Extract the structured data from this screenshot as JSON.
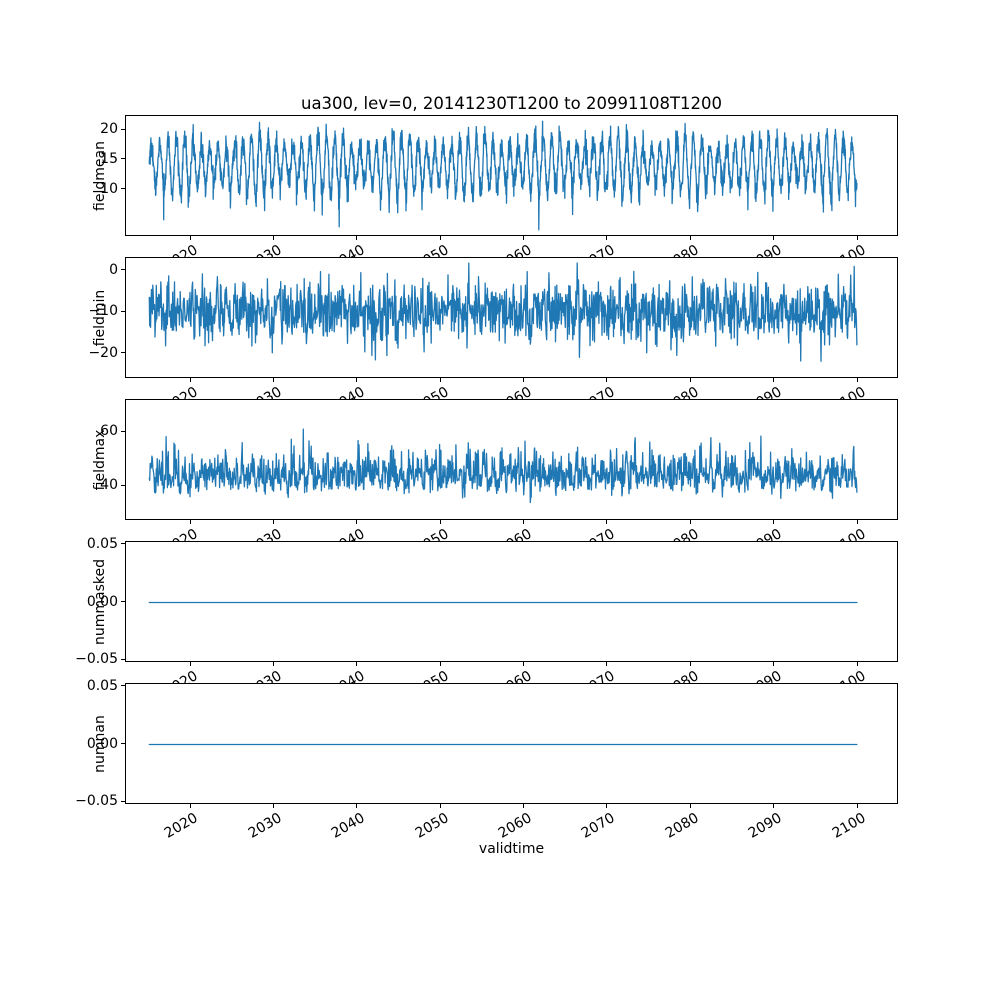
{
  "figure": {
    "title": "ua300, lev=0, 20141230T1200 to 20991108T1200",
    "xlabel": "validtime",
    "background": "#ffffff",
    "line_color": "#1f77b4",
    "xlim": [
      2012.2,
      2104.9
    ],
    "xticks": [
      2020,
      2030,
      2040,
      2050,
      2060,
      2070,
      2080,
      2090,
      2100
    ],
    "xtick_labels": [
      "2020",
      "2030",
      "2040",
      "2050",
      "2060",
      "2070",
      "2080",
      "2090",
      "2100"
    ]
  },
  "chart_data": [
    {
      "type": "line",
      "name": "fieldmean",
      "ylabel": "fieldmean",
      "ylim": [
        2,
        22.4
      ],
      "yticks": [
        {
          "value": 20,
          "label": "20"
        },
        {
          "value": 15,
          "label": "15"
        },
        {
          "value": 10,
          "label": "10"
        }
      ],
      "x_start": 2014.99,
      "x_end": 2099.85,
      "n_points": 3000,
      "signal": {
        "kind": "seasonal_noise",
        "mean": 14.2,
        "seasonal_amplitude": 4.0,
        "amplitude_mod": 1.1,
        "noise_std": 1.0,
        "range": [
          2.5,
          21.5
        ]
      }
    },
    {
      "type": "line",
      "name": "fieldmin",
      "ylabel": "fieldmin",
      "ylim": [
        -26,
        3
      ],
      "yticks": [
        {
          "value": 0,
          "label": "0"
        },
        {
          "value": -10,
          "label": "−10"
        },
        {
          "value": -20,
          "label": "−20"
        }
      ],
      "x_start": 2014.99,
      "x_end": 2099.85,
      "n_points": 1600,
      "signal": {
        "kind": "noise",
        "mean": -10,
        "seasonal_amplitude": 1.3,
        "noise_std": 3.7,
        "range": [
          -22,
          1.8
        ]
      }
    },
    {
      "type": "line",
      "name": "fieldmax",
      "ylabel": "fieldmax",
      "ylim": [
        27,
        72
      ],
      "yticks": [
        {
          "value": 60,
          "label": "60"
        },
        {
          "value": 40,
          "label": "40"
        }
      ],
      "x_start": 2014.99,
      "x_end": 2099.85,
      "n_points": 1600,
      "signal": {
        "kind": "skew_noise",
        "mean": 40.5,
        "seasonal_amplitude": 2.2,
        "noise_std": 2.0,
        "skew_std": 5.0,
        "range": [
          33,
          68
        ]
      }
    },
    {
      "type": "line",
      "name": "nummasked",
      "ylabel": "nummasked",
      "ylim": [
        -0.0526,
        0.0526
      ],
      "yticks": [
        {
          "value": 0.05,
          "label": "0.05"
        },
        {
          "value": 0.0,
          "label": "0.00"
        },
        {
          "value": -0.05,
          "label": "−0.05"
        }
      ],
      "x_start": 2014.99,
      "x_end": 2099.85,
      "n_points": 2,
      "signal": {
        "kind": "constant",
        "value": 0
      }
    },
    {
      "type": "line",
      "name": "numnan",
      "ylabel": "numnan",
      "ylim": [
        -0.0526,
        0.0526
      ],
      "yticks": [
        {
          "value": 0.05,
          "label": "0.05"
        },
        {
          "value": 0.0,
          "label": "0.00"
        },
        {
          "value": -0.05,
          "label": "−0.05"
        }
      ],
      "x_start": 2014.99,
      "x_end": 2099.85,
      "n_points": 2,
      "signal": {
        "kind": "constant",
        "value": 0
      }
    }
  ]
}
